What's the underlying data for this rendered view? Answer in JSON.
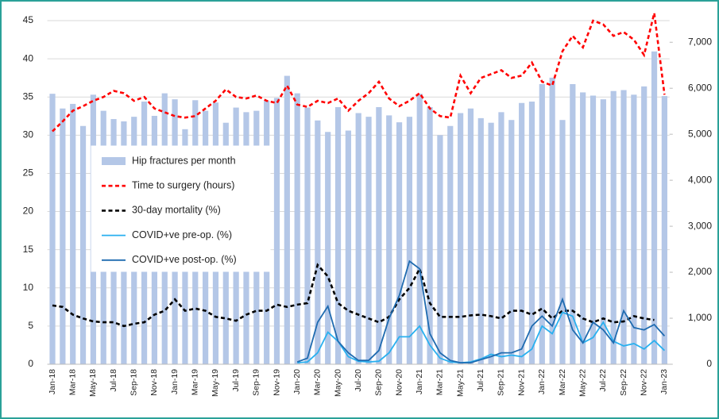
{
  "chart_data": {
    "type": "combo",
    "categories": [
      "Jan-18",
      null,
      "Mar-18",
      null,
      "May-18",
      null,
      "Jul-18",
      null,
      "Sep-18",
      null,
      "Nov-18",
      null,
      "Jan-19",
      null,
      "Mar-19",
      null,
      "May-19",
      null,
      "Jul-19",
      null,
      "Sep-19",
      null,
      "Nov-19",
      null,
      "Jan-20",
      null,
      "Mar-20",
      null,
      "May-20",
      null,
      "Jul-20",
      null,
      "Sep-20",
      null,
      "Nov-20",
      null,
      "Jan-21",
      null,
      "Mar-21",
      null,
      "May-21",
      null,
      "Jul-21",
      null,
      "Sep-21",
      null,
      "Nov-21",
      null,
      "Jan-22",
      null,
      "Mar-22",
      null,
      "May-22",
      null,
      "Jul-22",
      null,
      "Sep-22",
      null,
      "Nov-22",
      null,
      "Jan-23"
    ],
    "ylim": [
      0,
      45
    ],
    "yticks": [
      0,
      5,
      10,
      15,
      20,
      25,
      30,
      35,
      40,
      45
    ],
    "y2lim": [
      0,
      7470
    ],
    "y2ticks": [
      0,
      {
        "value": 1000,
        "label": "1,000"
      },
      {
        "value": 2000,
        "label": "2,000"
      },
      {
        "value": 3000,
        "label": "3,000"
      },
      {
        "value": 4000,
        "label": "4,000"
      },
      {
        "value": 5000,
        "label": "5,000"
      },
      {
        "value": 6000,
        "label": "6,000"
      },
      {
        "value": 7000,
        "label": "7,000"
      }
    ],
    "grid": true,
    "legend": "left",
    "series": [
      {
        "name": "Hip fractures per month",
        "type": "bar",
        "axis": "y2",
        "color": "#b4c7e7",
        "values": [
          5880,
          5560,
          5660,
          5180,
          5860,
          5510,
          5330,
          5280,
          5380,
          5710,
          5400,
          5890,
          5760,
          5110,
          5740,
          5510,
          5690,
          5250,
          5580,
          5480,
          5510,
          5730,
          5790,
          6270,
          5890,
          5580,
          5300,
          5050,
          5590,
          5080,
          5460,
          5380,
          5590,
          5410,
          5260,
          5380,
          5880,
          5590,
          4980,
          5180,
          5460,
          5560,
          5350,
          5250,
          5480,
          5310,
          5680,
          5710,
          6090,
          6230,
          5310,
          6090,
          5910,
          5840,
          5760,
          5940,
          5960,
          5860,
          6040,
          6800,
          5830
        ]
      },
      {
        "name": "Time to surgery (hours)",
        "type": "line",
        "dashed": true,
        "color": "#ff0000",
        "values": [
          30.5,
          31.8,
          33.2,
          33.8,
          34.5,
          35,
          35.8,
          35.5,
          34.5,
          35,
          33.5,
          33,
          32.5,
          32.3,
          32.5,
          33.5,
          34.5,
          36,
          35,
          34.8,
          35.2,
          34.5,
          34.2,
          36.5,
          34,
          33.7,
          34.5,
          34.2,
          34.8,
          33.2,
          34.5,
          35.5,
          37,
          34.8,
          33.8,
          34.5,
          35.5,
          33.5,
          32.5,
          32.3,
          37.8,
          35.5,
          37.5,
          38,
          38.5,
          37.5,
          37.8,
          39.5,
          37,
          36.5,
          41,
          43,
          41.5,
          45,
          44.5,
          43,
          43.5,
          42.5,
          40.5,
          46,
          35.3
        ]
      },
      {
        "name": "30-day mortality (%)",
        "type": "line",
        "dashed": true,
        "color": "#000000",
        "values": [
          7.7,
          7.5,
          6.5,
          6,
          5.6,
          5.5,
          5.5,
          5.0,
          5.3,
          5.5,
          6.5,
          7,
          8.5,
          7,
          7.3,
          7,
          6.2,
          6,
          5.7,
          6.5,
          7,
          7,
          7.8,
          7.5,
          7.8,
          8,
          13,
          11.5,
          8,
          7,
          6.5,
          6,
          5.5,
          6.2,
          8.5,
          10,
          12.5,
          8,
          6.2,
          6.2,
          6.2,
          6.4,
          6.5,
          6.3,
          6,
          7,
          7,
          6.5,
          7.3,
          6,
          7,
          7,
          6,
          5.5,
          6,
          5.5,
          5.6,
          6.3,
          6,
          5.8,
          null
        ]
      },
      {
        "name": "COVID+ve pre-op. (%)",
        "type": "line",
        "dashed": false,
        "color": "#29b0ef",
        "values": [
          null,
          null,
          null,
          null,
          null,
          null,
          null,
          null,
          null,
          null,
          null,
          null,
          null,
          null,
          null,
          null,
          null,
          null,
          null,
          null,
          null,
          null,
          null,
          null,
          0.2,
          0.3,
          1.5,
          4.2,
          3.0,
          1.0,
          0.4,
          0.3,
          0.4,
          1.5,
          3.6,
          3.6,
          5.0,
          2.5,
          0.8,
          0.3,
          0.2,
          0.3,
          0.7,
          1.3,
          1.0,
          1.2,
          1.0,
          2.0,
          5.0,
          4.0,
          6.8,
          6.3,
          2.8,
          3.5,
          5.5,
          3.0,
          2.4,
          2.7,
          2.0,
          3.1,
          1.8
        ]
      },
      {
        "name": "COVID+ve post-op. (%)",
        "type": "line",
        "dashed": false,
        "color": "#1f6bb0",
        "values": [
          null,
          null,
          null,
          null,
          null,
          null,
          null,
          null,
          null,
          null,
          null,
          null,
          null,
          null,
          null,
          null,
          null,
          null,
          null,
          null,
          null,
          null,
          null,
          null,
          0.3,
          0.8,
          5.5,
          7.6,
          3.0,
          1.5,
          0.5,
          0.5,
          1.8,
          6.0,
          9.0,
          13.5,
          12.5,
          4.0,
          1.5,
          0.5,
          0.2,
          0.2,
          0.6,
          1.0,
          1.5,
          1.5,
          2.0,
          5.0,
          6.3,
          5.0,
          8.5,
          4.5,
          2.8,
          5.5,
          4.5,
          2.8,
          7.0,
          4.8,
          4.5,
          5.2,
          3.7
        ]
      }
    ]
  }
}
